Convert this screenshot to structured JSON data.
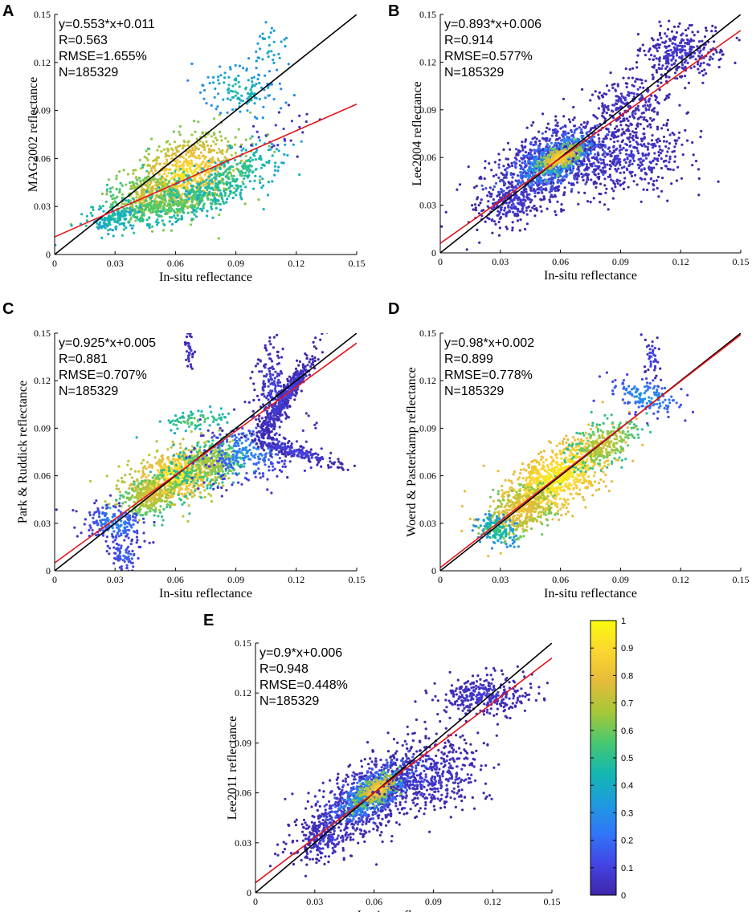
{
  "figure_colors": {
    "one_to_one_line": "#000000",
    "fit_line": "#e4141b",
    "colormap": [
      "#3e26a8",
      "#4443e4",
      "#3176f8",
      "#1e9bdf",
      "#13b7b0",
      "#48c86f",
      "#a6c738",
      "#e5bb3a",
      "#fcd62f",
      "#f9fb0e"
    ]
  },
  "colorbar": {
    "ticks": [
      "0",
      "0.1",
      "0.2",
      "0.3",
      "0.4",
      "0.5",
      "0.6",
      "0.7",
      "0.8",
      "0.9",
      "1"
    ]
  },
  "chart_data": [
    {
      "panel": "A",
      "type": "scatter",
      "xlabel": "In-situ reflectance",
      "ylabel": "MAG2002 reflectance",
      "xlim": [
        0,
        0.15
      ],
      "ylim": [
        0,
        0.15
      ],
      "xticks": [
        "0",
        "0.03",
        "0.06",
        "0.09",
        "0.12",
        "0.15"
      ],
      "yticks": [
        "0",
        "0.03",
        "0.06",
        "0.09",
        "0.12",
        "0.15"
      ],
      "stats": [
        "y=0.553*x+0.011",
        "R=0.563",
        "RMSE=1.655%",
        "N=185329"
      ],
      "fit": {
        "slope": 0.553,
        "intercept": 0.011
      },
      "regions": [
        {
          "cx": 0.065,
          "cy": 0.05,
          "sx": 0.016,
          "sy": 0.011,
          "rot": 0.58,
          "n": 750,
          "dens": [
            0.62,
            0.95
          ]
        },
        {
          "cx": 0.045,
          "cy": 0.036,
          "sx": 0.011,
          "sy": 0.007,
          "rot": 0.6,
          "n": 300,
          "dens": [
            0.5,
            0.78
          ]
        },
        {
          "cx": 0.06,
          "cy": 0.032,
          "sx": 0.02,
          "sy": 0.005,
          "rot": 0.25,
          "n": 420,
          "dens": [
            0.42,
            0.62
          ]
        },
        {
          "cx": 0.088,
          "cy": 0.05,
          "sx": 0.014,
          "sy": 0.006,
          "rot": 0.55,
          "n": 250,
          "dens": [
            0.38,
            0.55
          ]
        },
        {
          "cx": 0.092,
          "cy": 0.103,
          "sx": 0.008,
          "sy": 0.01,
          "rot": 1.0,
          "n": 130,
          "dens": [
            0.28,
            0.48
          ]
        },
        {
          "cx": 0.03,
          "cy": 0.022,
          "sx": 0.005,
          "sy": 0.003,
          "rot": 0.3,
          "n": 90,
          "dens": [
            0.35,
            0.48
          ]
        },
        {
          "cx": 0.108,
          "cy": 0.13,
          "sx": 0.005,
          "sy": 0.009,
          "rot": 0.0,
          "n": 35,
          "dens": [
            0.3,
            0.42
          ]
        },
        {
          "cx": 0.11,
          "cy": 0.075,
          "sx": 0.01,
          "sy": 0.006,
          "rot": 0.6,
          "n": 25,
          "dens": [
            0.02,
            0.1
          ]
        }
      ]
    },
    {
      "panel": "B",
      "type": "scatter",
      "xlabel": "In-situ reflectance",
      "ylabel": "Lee2004 reflectance",
      "xlim": [
        0,
        0.15
      ],
      "ylim": [
        0,
        0.15
      ],
      "xticks": [
        "0",
        "0.03",
        "0.06",
        "0.09",
        "0.12",
        "0.15"
      ],
      "yticks": [
        "0",
        "0.03",
        "0.06",
        "0.09",
        "0.12",
        "0.15"
      ],
      "stats": [
        "y=0.893*x+0.006",
        "R=0.914",
        "RMSE=0.577%",
        "N=185329"
      ],
      "fit": {
        "slope": 0.893,
        "intercept": 0.006
      },
      "regions": [
        {
          "cx": 0.056,
          "cy": 0.056,
          "sx": 0.022,
          "sy": 0.01,
          "rot": 0.65,
          "n": 900,
          "dens": [
            0.0,
            0.12
          ]
        },
        {
          "cx": 0.058,
          "cy": 0.058,
          "sx": 0.013,
          "sy": 0.006,
          "rot": 0.65,
          "n": 500,
          "dens": [
            0.15,
            0.45
          ]
        },
        {
          "cx": 0.06,
          "cy": 0.06,
          "sx": 0.006,
          "sy": 0.003,
          "rot": 0.65,
          "n": 250,
          "dens": [
            0.6,
            0.95
          ]
        },
        {
          "cx": 0.12,
          "cy": 0.125,
          "sx": 0.01,
          "sy": 0.008,
          "rot": 0.2,
          "n": 300,
          "dens": [
            0.0,
            0.08
          ]
        },
        {
          "cx": 0.095,
          "cy": 0.06,
          "sx": 0.016,
          "sy": 0.011,
          "rot": 0.3,
          "n": 400,
          "dens": [
            0.0,
            0.08
          ]
        },
        {
          "cx": 0.095,
          "cy": 0.095,
          "sx": 0.01,
          "sy": 0.008,
          "rot": 0.6,
          "n": 200,
          "dens": [
            0.0,
            0.08
          ]
        },
        {
          "cx": 0.035,
          "cy": 0.03,
          "sx": 0.008,
          "sy": 0.006,
          "rot": 0.5,
          "n": 150,
          "dens": [
            0.0,
            0.1
          ]
        }
      ]
    },
    {
      "panel": "C",
      "type": "scatter",
      "xlabel": "In-situ reflectance",
      "ylabel": "Park & Ruddick reflectance",
      "xlim": [
        0,
        0.15
      ],
      "ylim": [
        0,
        0.15
      ],
      "xticks": [
        "0",
        "0.03",
        "0.06",
        "0.09",
        "0.12",
        "0.15"
      ],
      "yticks": [
        "0",
        "0.03",
        "0.06",
        "0.09",
        "0.12",
        "0.15"
      ],
      "stats": [
        "y=0.925*x+0.005",
        "R=0.881",
        "RMSE=0.707%",
        "N=185329"
      ],
      "fit": {
        "slope": 0.925,
        "intercept": 0.005
      },
      "regions": [
        {
          "cx": 0.06,
          "cy": 0.06,
          "sx": 0.012,
          "sy": 0.008,
          "rot": 0.5,
          "n": 700,
          "dens": [
            0.7,
            0.98
          ]
        },
        {
          "cx": 0.048,
          "cy": 0.048,
          "sx": 0.009,
          "sy": 0.006,
          "rot": 0.6,
          "n": 300,
          "dens": [
            0.5,
            0.8
          ]
        },
        {
          "cx": 0.078,
          "cy": 0.068,
          "sx": 0.009,
          "sy": 0.007,
          "rot": 0.4,
          "n": 300,
          "dens": [
            0.45,
            0.7
          ]
        },
        {
          "cx": 0.03,
          "cy": 0.03,
          "sx": 0.006,
          "sy": 0.008,
          "rot": 1.2,
          "n": 200,
          "dens": [
            0.05,
            0.3
          ]
        },
        {
          "cx": 0.095,
          "cy": 0.075,
          "sx": 0.012,
          "sy": 0.01,
          "rot": 0.5,
          "n": 300,
          "dens": [
            0.05,
            0.3
          ]
        },
        {
          "cx": 0.115,
          "cy": 0.11,
          "sx": 0.014,
          "sy": 0.002,
          "rot": 1.1,
          "n": 450,
          "dens": [
            0.0,
            0.12
          ]
        },
        {
          "cx": 0.12,
          "cy": 0.075,
          "sx": 0.012,
          "sy": 0.002,
          "rot": -0.35,
          "n": 200,
          "dens": [
            0.0,
            0.12
          ]
        },
        {
          "cx": 0.108,
          "cy": 0.115,
          "sx": 0.004,
          "sy": 0.018,
          "rot": 0.0,
          "n": 200,
          "dens": [
            0.0,
            0.1
          ]
        },
        {
          "cx": 0.035,
          "cy": 0.01,
          "sx": 0.004,
          "sy": 0.006,
          "rot": 0.3,
          "n": 80,
          "dens": [
            0.05,
            0.2
          ]
        },
        {
          "cx": 0.067,
          "cy": 0.14,
          "sx": 0.001,
          "sy": 0.008,
          "rot": 0.0,
          "n": 40,
          "dens": [
            0.0,
            0.1
          ]
        },
        {
          "cx": 0.07,
          "cy": 0.095,
          "sx": 0.01,
          "sy": 0.003,
          "rot": 0.2,
          "n": 80,
          "dens": [
            0.4,
            0.6
          ]
        }
      ]
    },
    {
      "panel": "D",
      "type": "scatter",
      "xlabel": "In-situ reflectance",
      "ylabel": "Woerd & Pasterkamp reflectance",
      "xlim": [
        0,
        0.15
      ],
      "ylim": [
        0,
        0.15
      ],
      "xticks": [
        "0",
        "0.03",
        "0.06",
        "0.09",
        "0.12",
        "0.15"
      ],
      "yticks": [
        "0",
        "0.03",
        "0.06",
        "0.09",
        "0.12",
        "0.15"
      ],
      "stats": [
        "y=0.98*x+0.002",
        "R=0.899",
        "RMSE=0.778%",
        "N=185329"
      ],
      "fit": {
        "slope": 0.98,
        "intercept": 0.002
      },
      "regions": [
        {
          "cx": 0.058,
          "cy": 0.058,
          "sx": 0.018,
          "sy": 0.008,
          "rot": 0.75,
          "n": 900,
          "dens": [
            0.78,
            0.98
          ]
        },
        {
          "cx": 0.04,
          "cy": 0.038,
          "sx": 0.01,
          "sy": 0.006,
          "rot": 0.8,
          "n": 350,
          "dens": [
            0.6,
            0.85
          ]
        },
        {
          "cx": 0.082,
          "cy": 0.08,
          "sx": 0.01,
          "sy": 0.006,
          "rot": 0.7,
          "n": 250,
          "dens": [
            0.5,
            0.75
          ]
        },
        {
          "cx": 0.028,
          "cy": 0.026,
          "sx": 0.004,
          "sy": 0.005,
          "rot": 0.8,
          "n": 150,
          "dens": [
            0.3,
            0.55
          ]
        },
        {
          "cx": 0.103,
          "cy": 0.11,
          "sx": 0.005,
          "sy": 0.01,
          "rot": 1.2,
          "n": 150,
          "dens": [
            0.1,
            0.35
          ]
        },
        {
          "cx": 0.106,
          "cy": 0.135,
          "sx": 0.002,
          "sy": 0.007,
          "rot": 0.0,
          "n": 40,
          "dens": [
            0.0,
            0.15
          ]
        }
      ]
    },
    {
      "panel": "E",
      "type": "scatter",
      "xlabel": "In-situ reflectance",
      "ylabel": "Lee2011 reflectance",
      "xlim": [
        0,
        0.15
      ],
      "ylim": [
        0,
        0.15
      ],
      "xticks": [
        "0",
        "0.03",
        "0.06",
        "0.09",
        "0.12",
        "0.15"
      ],
      "yticks": [
        "0",
        "0.03",
        "0.06",
        "0.09",
        "0.12",
        "0.15"
      ],
      "stats": [
        "y=0.9*x+0.006",
        "R=0.948",
        "RMSE=0.448%",
        "N=185329"
      ],
      "fit": {
        "slope": 0.9,
        "intercept": 0.006
      },
      "regions": [
        {
          "cx": 0.058,
          "cy": 0.058,
          "sx": 0.022,
          "sy": 0.009,
          "rot": 0.7,
          "n": 900,
          "dens": [
            0.0,
            0.12
          ]
        },
        {
          "cx": 0.06,
          "cy": 0.06,
          "sx": 0.013,
          "sy": 0.005,
          "rot": 0.7,
          "n": 500,
          "dens": [
            0.15,
            0.45
          ]
        },
        {
          "cx": 0.062,
          "cy": 0.062,
          "sx": 0.006,
          "sy": 0.003,
          "rot": 0.7,
          "n": 250,
          "dens": [
            0.6,
            0.95
          ]
        },
        {
          "cx": 0.115,
          "cy": 0.118,
          "sx": 0.012,
          "sy": 0.006,
          "rot": 0.1,
          "n": 320,
          "dens": [
            0.0,
            0.08
          ]
        },
        {
          "cx": 0.09,
          "cy": 0.07,
          "sx": 0.014,
          "sy": 0.01,
          "rot": 0.3,
          "n": 350,
          "dens": [
            0.0,
            0.08
          ]
        },
        {
          "cx": 0.035,
          "cy": 0.032,
          "sx": 0.007,
          "sy": 0.005,
          "rot": 0.6,
          "n": 150,
          "dens": [
            0.0,
            0.1
          ]
        }
      ]
    }
  ]
}
